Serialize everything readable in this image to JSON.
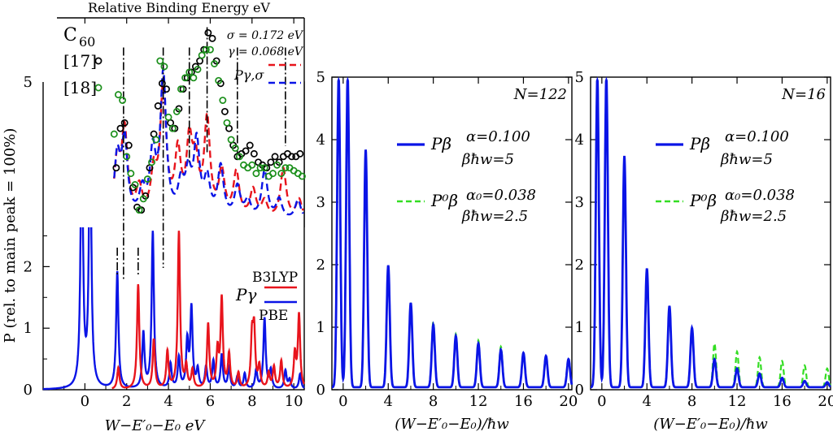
{
  "chart_data": [
    {
      "type": "line",
      "panel": "left",
      "xlabel": "W−E′₀−E₀  eV",
      "ylabel": "P (rel. to main peak = 100%)",
      "xlim": [
        -2,
        10.5
      ],
      "ylim": [
        0,
        5
      ],
      "xticks": [
        0,
        2,
        4,
        6,
        8,
        10
      ],
      "yticks": [
        0,
        1,
        2,
        3,
        4,
        5
      ],
      "legend": {
        "title": "Pγ",
        "entries": [
          "B3LYP",
          "PBE"
        ],
        "colors": [
          "#e8141c",
          "#0a14e6"
        ],
        "placement": "center-right"
      },
      "series": [
        {
          "name": "PBE",
          "color": "#0a14e6",
          "peaks": [
            [
              -0.15,
              4.5
            ],
            [
              0.25,
              4.5
            ],
            [
              1.55,
              1.9
            ],
            [
              2.8,
              0.9
            ],
            [
              3.25,
              2.55
            ],
            [
              4.1,
              0.4
            ],
            [
              4.5,
              0.5
            ],
            [
              4.9,
              0.75
            ],
            [
              5.1,
              1.3
            ],
            [
              5.4,
              0.3
            ],
            [
              5.8,
              0.35
            ],
            [
              6.15,
              0.45
            ],
            [
              6.55,
              0.55
            ],
            [
              6.9,
              0.35
            ],
            [
              7.3,
              0.2
            ],
            [
              7.65,
              0.25
            ],
            [
              8.2,
              0.3
            ],
            [
              8.6,
              1.15
            ],
            [
              8.9,
              0.3
            ],
            [
              9.6,
              0.3
            ],
            [
              9.8,
              0.15
            ],
            [
              10.3,
              0.25
            ]
          ]
        },
        {
          "name": "B3LYP",
          "color": "#e8141c",
          "peaks": [
            [
              1.6,
              0.35
            ],
            [
              2.55,
              1.7
            ],
            [
              3.3,
              0.8
            ],
            [
              3.95,
              0.6
            ],
            [
              4.5,
              2.55
            ],
            [
              4.85,
              0.35
            ],
            [
              5.15,
              0.3
            ],
            [
              5.9,
              1.05
            ],
            [
              6.35,
              0.6
            ],
            [
              6.55,
              1.45
            ],
            [
              6.9,
              0.55
            ],
            [
              7.35,
              0.25
            ],
            [
              8.0,
              0.8
            ],
            [
              8.1,
              0.9
            ],
            [
              8.35,
              0.35
            ],
            [
              8.8,
              0.25
            ],
            [
              9.05,
              0.35
            ],
            [
              9.4,
              0.45
            ],
            [
              10.05,
              0.55
            ],
            [
              10.25,
              1.2
            ]
          ]
        }
      ]
    },
    {
      "type": "line",
      "panel": "inset",
      "title": "Relative Binding Energy eV",
      "molecule": "C",
      "molecule_sub": "60",
      "params": [
        "σ = 0.172 eV",
        "γ = 0.068 eV"
      ],
      "legend_label": "Pγ,σ",
      "xlim": [
        -2,
        10.5
      ],
      "dashdot_markers": [
        1.85,
        3.75,
        5.0,
        5.85,
        7.3,
        9.6
      ],
      "series": [
        {
          "name": "[17]",
          "marker": "circle",
          "color": "#000000",
          "x": [
            1.5,
            1.7,
            1.9,
            2.1,
            2.3,
            2.5,
            2.7,
            2.9,
            3.1,
            3.3,
            3.5,
            3.7,
            3.9,
            4.1,
            4.3,
            4.5,
            4.7,
            4.9,
            5.1,
            5.3,
            5.5,
            5.7,
            5.9,
            6.1,
            6.3,
            6.5,
            6.7,
            6.9,
            7.1,
            7.3,
            7.5,
            7.7,
            7.9,
            8.1,
            8.3,
            8.5,
            8.7,
            8.9,
            9.1,
            9.3,
            9.5,
            9.7,
            9.9,
            10.1,
            10.3
          ],
          "y": [
            3.5,
            4.2,
            4.3,
            3.9,
            3.15,
            2.8,
            2.75,
            3.0,
            3.5,
            4.1,
            4.6,
            5.0,
            4.9,
            4.3,
            4.2,
            4.55,
            4.9,
            5.1,
            5.2,
            5.3,
            5.4,
            5.6,
            5.9,
            5.8,
            5.4,
            5.0,
            4.5,
            4.2,
            3.9,
            3.7,
            3.75,
            3.8,
            3.9,
            3.75,
            3.6,
            3.55,
            3.5,
            3.6,
            3.7,
            3.6,
            3.7,
            3.75,
            3.7,
            3.7,
            3.75
          ]
        },
        {
          "name": "[18]",
          "marker": "circle",
          "color": "#1a8f1a",
          "x": [
            1.4,
            1.6,
            1.8,
            2.0,
            2.2,
            2.4,
            2.6,
            2.8,
            3.0,
            3.2,
            3.4,
            3.6,
            3.8,
            4.0,
            4.2,
            4.4,
            4.6,
            4.8,
            5.0,
            5.2,
            5.4,
            5.6,
            5.8,
            6.0,
            6.2,
            6.4,
            6.6,
            6.8,
            7.0,
            7.2,
            7.4,
            7.6,
            7.8,
            8.0,
            8.2,
            8.4,
            8.6,
            8.8,
            9.0,
            9.2,
            9.4,
            9.6,
            9.8,
            10.0,
            10.2,
            10.4
          ],
          "y": [
            4.1,
            4.8,
            4.7,
            3.7,
            3.4,
            3.2,
            2.75,
            2.95,
            3.3,
            3.6,
            4.0,
            5.4,
            5.3,
            4.4,
            4.2,
            4.5,
            4.9,
            5.1,
            5.2,
            5.1,
            5.25,
            5.5,
            5.6,
            5.6,
            5.35,
            5.05,
            4.7,
            4.3,
            4.0,
            3.85,
            3.7,
            3.55,
            3.5,
            3.55,
            3.4,
            3.5,
            3.5,
            3.35,
            3.4,
            3.55,
            3.4,
            3.5,
            3.5,
            3.45,
            3.4,
            3.35
          ]
        }
      ]
    },
    {
      "type": "line",
      "panel": "middle",
      "N": "N=122",
      "xlabel": "(W−E′₀−E₀)/ħw",
      "xlim": [
        -1,
        20.3
      ],
      "ylim": [
        0,
        5
      ],
      "xticks": [
        0,
        4,
        8,
        12,
        16,
        20
      ],
      "yticks": [
        0,
        1,
        2,
        3,
        4,
        5
      ],
      "legend": [
        {
          "label": "Pβ",
          "params": [
            "α=0.100",
            "βħw=5"
          ],
          "color": "#0a14e6",
          "style": "solid"
        },
        {
          "label": "P⁰β",
          "params": [
            "α₀=0.038",
            "βħw=2.5"
          ],
          "color": "#33dd22",
          "style": "dashed"
        }
      ],
      "series": [
        {
          "name": "Pβ",
          "x": [
            -0.4,
            0.4,
            2,
            4,
            6,
            8,
            10,
            12,
            14,
            16,
            18,
            20
          ],
          "y": [
            4.95,
            4.95,
            3.8,
            1.95,
            1.35,
            1.0,
            0.82,
            0.7,
            0.6,
            0.55,
            0.5,
            0.45
          ]
        },
        {
          "name": "P⁰β",
          "x": [
            -0.4,
            0.4,
            2,
            4,
            6,
            8,
            10,
            12,
            14,
            16,
            18,
            20
          ],
          "y": [
            4.95,
            4.95,
            3.75,
            1.95,
            1.35,
            1.05,
            0.85,
            0.75,
            0.65,
            0.55,
            0.5,
            0.45
          ]
        }
      ]
    },
    {
      "type": "line",
      "panel": "right",
      "N": "N=16",
      "xlabel": "(W−E′₀−E₀)/ħw",
      "xlim": [
        -1,
        20.3
      ],
      "ylim": [
        0,
        5
      ],
      "xticks": [
        0,
        4,
        8,
        12,
        16,
        20
      ],
      "yticks": [
        0,
        1,
        2,
        3,
        4,
        5
      ],
      "legend": [
        {
          "label": "Pβ",
          "params": [
            "α=0.100",
            "βħw=5"
          ],
          "color": "#0a14e6",
          "style": "solid"
        },
        {
          "label": "P⁰β",
          "params": [
            "α₀=0.038",
            "βħw=2.5"
          ],
          "color": "#33dd22",
          "style": "dashed"
        }
      ],
      "series": [
        {
          "name": "Pβ",
          "x": [
            -0.4,
            0.4,
            2,
            4,
            6,
            8,
            10,
            12,
            14,
            16,
            18,
            20
          ],
          "y": [
            4.95,
            4.95,
            3.7,
            1.9,
            1.3,
            0.95,
            0.45,
            0.3,
            0.22,
            0.15,
            0.1,
            0.08
          ]
        },
        {
          "name": "P⁰β",
          "x": [
            -0.4,
            0.4,
            2,
            4,
            6,
            8,
            10,
            12,
            14,
            16,
            18,
            20
          ],
          "y": [
            4.95,
            4.95,
            3.65,
            1.85,
            1.25,
            0.95,
            0.7,
            0.57,
            0.48,
            0.42,
            0.35,
            0.3
          ]
        }
      ]
    }
  ]
}
